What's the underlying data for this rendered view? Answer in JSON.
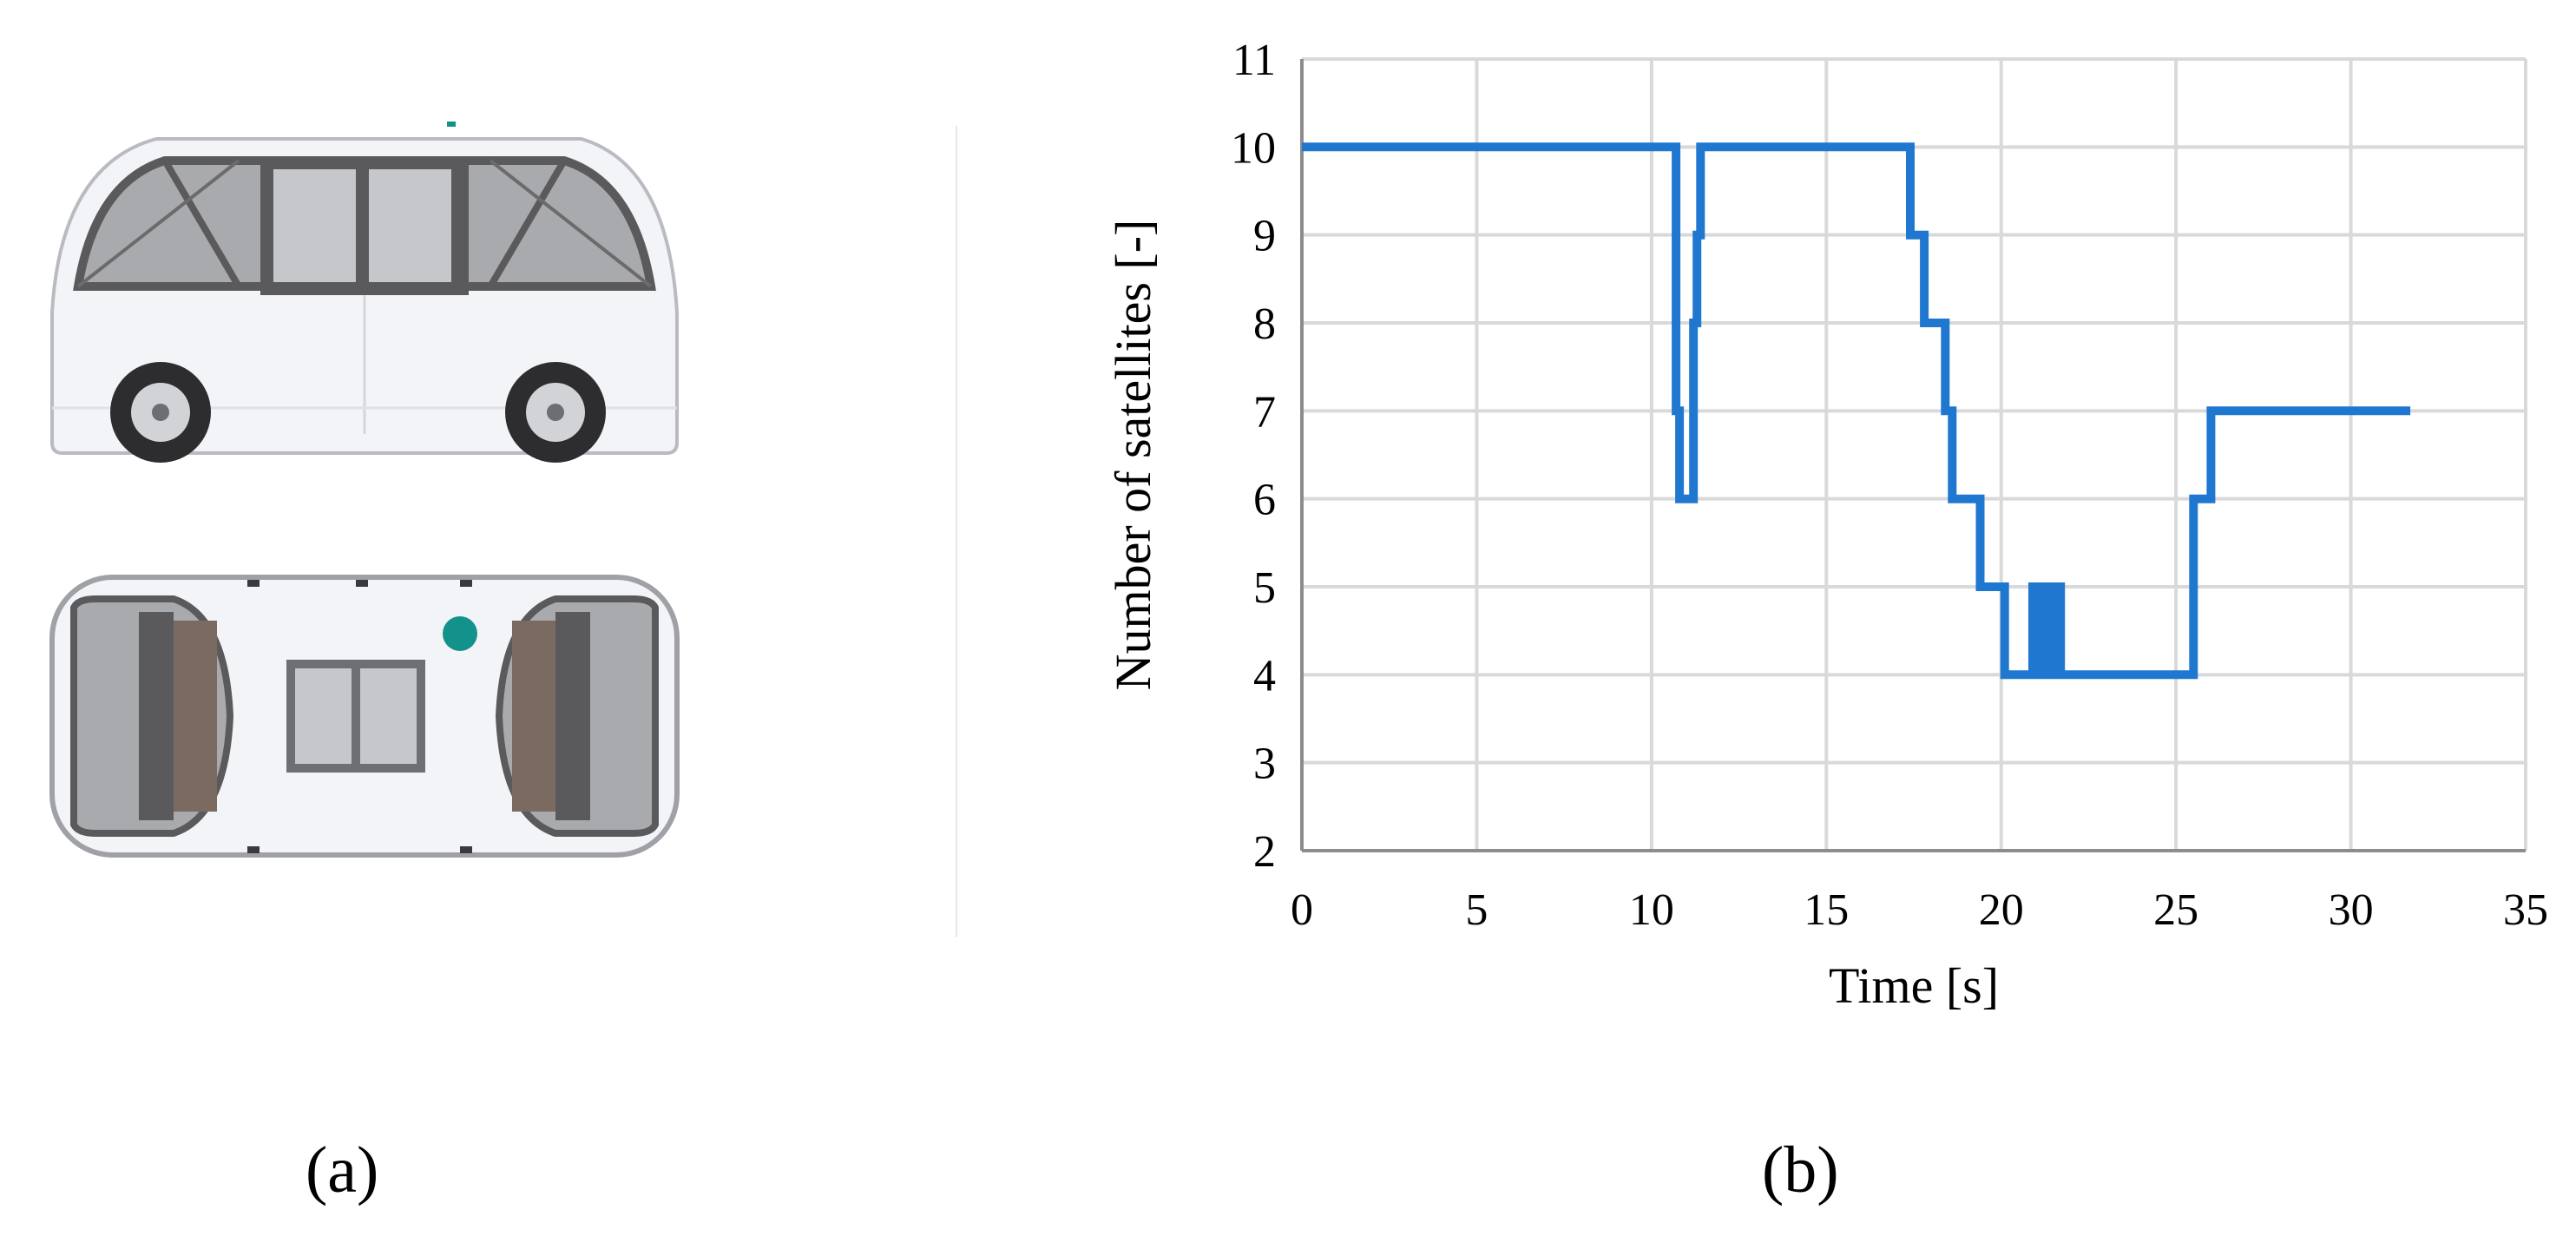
{
  "panels": [
    {
      "label": "(a)",
      "content": "vehicle-views"
    },
    {
      "label": "(b)",
      "content": "chart"
    }
  ],
  "colors": {
    "series": "#1f77d0",
    "grid": "#d9d9d9",
    "vehicle_body": "#f3f4f7",
    "vehicle_glass": "#a9aaad",
    "vehicle_frame": "#5a5a5c",
    "gnss_marker": "#13928c"
  },
  "icons": [
    "shuttle-side-view-icon",
    "shuttle-top-view-icon"
  ],
  "chart_data": {
    "type": "line",
    "step": true,
    "xlabel": "Time [s]",
    "ylabel": "Number of satellites [-]",
    "xlim": [
      0,
      35
    ],
    "ylim": [
      2,
      11
    ],
    "xticks": [
      0,
      5,
      10,
      15,
      20,
      25,
      30,
      35
    ],
    "yticks": [
      2,
      3,
      4,
      5,
      6,
      7,
      8,
      9,
      10,
      11
    ],
    "grid": true,
    "legend": "none",
    "series": [
      {
        "x": [
          0,
          10.7,
          10.7,
          10.8,
          10.8,
          11.2,
          11.2,
          11.3,
          11.3,
          11.4,
          11.4,
          11.5,
          11.5,
          17.4,
          17.4,
          17.8,
          17.8,
          18.4,
          18.4,
          18.6,
          18.6,
          19.4,
          19.4,
          20.1,
          20.1,
          20.9,
          20.9,
          21.0,
          21.0,
          21.2,
          21.2,
          21.3,
          21.3,
          21.5,
          21.5,
          21.7,
          21.7,
          25.5,
          25.5,
          25.8,
          25.8,
          26.0,
          26.0,
          31.7
        ],
        "y": [
          10,
          10,
          7,
          7,
          6,
          6,
          8,
          8,
          9,
          9,
          10,
          10,
          10,
          10,
          9,
          9,
          8,
          8,
          7,
          7,
          6,
          6,
          5,
          5,
          4,
          4,
          5,
          5,
          4,
          4,
          5,
          5,
          4,
          4,
          5,
          5,
          4,
          4,
          6,
          6,
          6,
          6,
          7,
          7
        ]
      }
    ]
  }
}
